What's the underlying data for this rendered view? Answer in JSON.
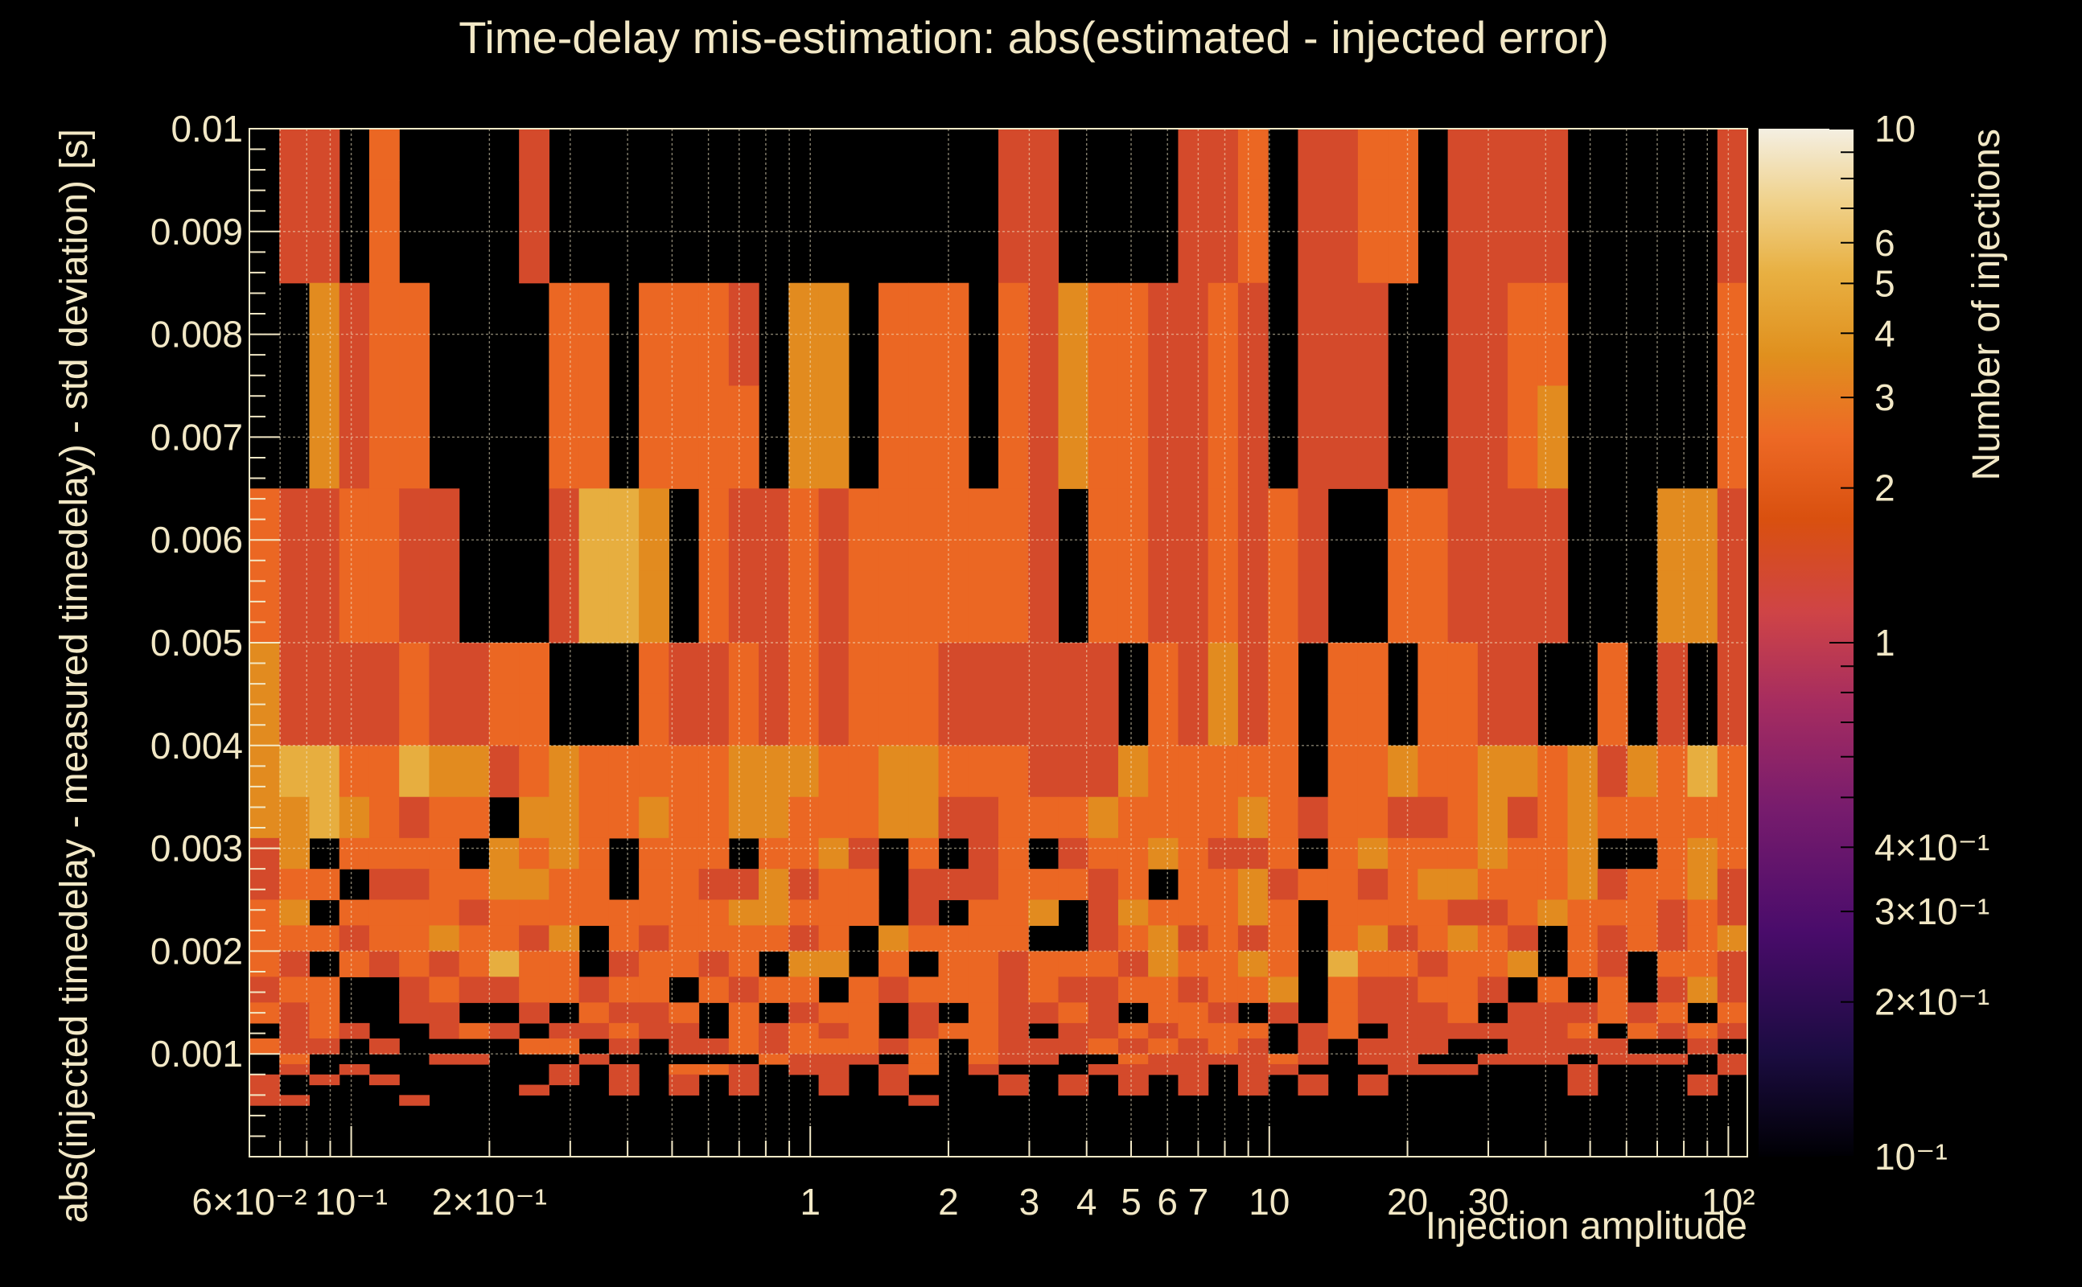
{
  "chart_data": {
    "type": "heatmap",
    "title": "Time-delay mis-estimation: abs(estimated - injected error)",
    "xlabel": "Injection amplitude",
    "ylabel": "abs(injected timedelay - measured timedelay) - std deviation) [s]",
    "zlabel": "Number of injections",
    "x_scale": "log",
    "z_scale": "log",
    "xlim": [
      0.06,
      110
    ],
    "ylim": [
      0,
      0.01
    ],
    "zlim": [
      0.1,
      10
    ],
    "x_tick_labels": [
      "6×10⁻²",
      "10⁻¹",
      "2×10⁻¹",
      "1",
      "2",
      "3",
      "4",
      "5",
      "6",
      "7",
      "10",
      "20",
      "30",
      "10²"
    ],
    "y_tick_labels": [
      "0.001",
      "0.002",
      "0.003",
      "0.004",
      "0.005",
      "0.006",
      "0.007",
      "0.008",
      "0.009",
      "0.01"
    ],
    "z_tick_labels": [
      "10",
      "6",
      "5",
      "4",
      "3",
      "2",
      "1",
      "4×10⁻¹",
      "3×10⁻¹",
      "2×10⁻¹",
      "10⁻¹"
    ],
    "grid": true,
    "colormap": [
      "#000004",
      "#1b0c41",
      "#4a0c6b",
      "#781c6d",
      "#a52c60",
      "#cf4446",
      "#d9500f",
      "#ed6925",
      "#e0901e",
      "#e8b042",
      "#f0d28c",
      "#f4efe2"
    ],
    "bin_count_x": 50,
    "y_bin_edges": [
      0,
      0.0001,
      0.0002,
      0.0003,
      0.0004,
      0.0005,
      0.0006,
      0.0007,
      0.0008,
      0.0009,
      0.001,
      0.00115,
      0.0013,
      0.0015,
      0.00175,
      0.002,
      0.00225,
      0.0025,
      0.0028,
      0.0031,
      0.0035,
      0.004,
      0.0045,
      0.005,
      0.0057,
      0.0065,
      0.0075,
      0.0085,
      0.0095,
      0.01
    ],
    "counts_rows_top_to_bottom": [
      "01102000010000000000000001100001120112201111000001",
      "01102000010000000000000001100001120112201111000001",
      "00312200002202221033022202132211210111001122000002",
      "00312200002202222033022202132211210111001123000002",
      "21122110001443021121222222102211212100221111000331",
      "21122110001443021121222222102211212100221111000331",
      "31111211220002112121222111111021312022022110020101",
      "31111211220002112121222111111021312022022110020101",
      "34422433123222223332233222111322222022322332313242",
      "33432122033223223322233112223222232122112312322222",
      "13022220323202220223102012012232112023222322300232",
      "12201122332202211312201112221202231221233222312231",
      "23022221222222223322201022301322232022221123222121",
      "22212232213021222212032222001231212023123210212123",
      "21021212422012212033020221222132232042212230210221",
      "12200121122122021220212221211221223021122102020131",
      "21200110010211202012201021121022101021112011121202",
      "01210012101121102121201221011212220120111111202121",
      "21101000022010112122212021112121210101110011110010",
      "02000011000100000211102021100211112101100111011101",
      "01010000001010221011012010001111011000111000100001",
      "10101000001010101001010001010101010101000000100010",
      "10000000010010101001010001010101010101000000100010",
      "11000100000000000000001000000000000000000000000000",
      "00000000000000000000000000000000000000000000000000",
      "00000000000000000000000000000000000000000000000000",
      "00000000000000000000000000000000000000000000000000",
      "00000000000000000000000000000000000000000000000000",
      "00000000000000000000000000000000000000000000000000"
    ]
  }
}
